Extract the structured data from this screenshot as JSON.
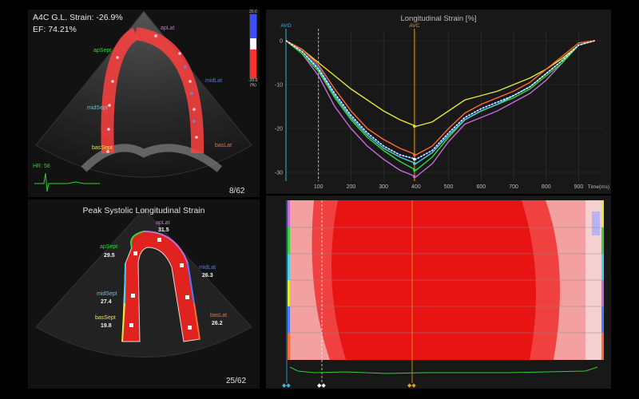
{
  "top_view": {
    "strain_label": "A4C G.L. Strain: -26.9%",
    "ef_label": "EF: 74.21%",
    "frame": "8/62",
    "hr_label": "HR: 58",
    "scale": {
      "max": "20.0",
      "min": "-20.0",
      "unit": "(%)"
    },
    "segments": [
      {
        "name": "apSept",
        "color": "#3ad43a"
      },
      {
        "name": "apLat",
        "color": "#c66bd8"
      },
      {
        "name": "midLat",
        "color": "#4c7cff"
      },
      {
        "name": "midSept",
        "color": "#49d0e6"
      },
      {
        "name": "basSept",
        "color": "#e6e63a"
      },
      {
        "name": "basLat",
        "color": "#ff6a30"
      }
    ]
  },
  "bullseye_view": {
    "title": "Peak Systolic Longitudinal Strain",
    "frame": "25/62",
    "segments": [
      {
        "name": "apLat",
        "value": "31.5",
        "color": "#c66bd8"
      },
      {
        "name": "apSept",
        "value": "29.5",
        "color": "#3ad43a"
      },
      {
        "name": "midLat",
        "value": "26.3",
        "color": "#4c7cff"
      },
      {
        "name": "midSept",
        "value": "27.4",
        "color": "#49d0e6"
      },
      {
        "name": "basSept",
        "value": "19.8",
        "color": "#e6e63a"
      },
      {
        "name": "basLat",
        "value": "26.2",
        "color": "#ff6a30"
      }
    ]
  },
  "chart_data": {
    "type": "line",
    "title": "Longitudinal Strain [%]",
    "xlabel": "Time(ms)",
    "ylabel": "",
    "xlim": [
      0,
      970
    ],
    "ylim": [
      -32,
      2
    ],
    "x_ticks": [
      "100",
      "200",
      "300",
      "400",
      "500",
      "600",
      "700",
      "800",
      "900"
    ],
    "y_ticks": [
      "0",
      "-10",
      "-20",
      "-30"
    ],
    "markers": [
      {
        "label": "AVO",
        "x": 0,
        "color": "#3ab6d8"
      },
      {
        "label": "AVC",
        "x": 395,
        "color": "#e0a020"
      }
    ],
    "cursor_x": 100,
    "x": [
      0,
      50,
      100,
      150,
      200,
      250,
      300,
      350,
      400,
      450,
      500,
      550,
      600,
      650,
      700,
      750,
      800,
      850,
      900,
      950
    ],
    "series": [
      {
        "color": "#e6e63a",
        "values": [
          0,
          -2,
          -5,
          -8,
          -11,
          -13.5,
          -16,
          -18,
          -19.5,
          -18.5,
          -16,
          -13.5,
          -12.5,
          -11.5,
          -10,
          -8.5,
          -6.5,
          -4,
          -1,
          0
        ]
      },
      {
        "color": "#c66bd8",
        "values": [
          0,
          -3,
          -8,
          -15,
          -20,
          -24,
          -27,
          -29.5,
          -31,
          -28,
          -23,
          -19,
          -17.5,
          -16,
          -14,
          -12,
          -9,
          -5,
          -1,
          0
        ]
      },
      {
        "color": "#3ad43a",
        "values": [
          0,
          -3,
          -7,
          -13,
          -18,
          -22,
          -25,
          -27.5,
          -29.5,
          -26.5,
          -22,
          -18,
          -16,
          -14.5,
          -13,
          -11,
          -8,
          -5,
          -1,
          0
        ]
      },
      {
        "color": "#4c7cff",
        "values": [
          0,
          -2.5,
          -6,
          -12,
          -17,
          -21,
          -24,
          -26,
          -27,
          -25,
          -21,
          -17.5,
          -15.5,
          -14,
          -12.5,
          -10.5,
          -7.5,
          -4.5,
          -1,
          0
        ]
      },
      {
        "color": "#49d0e6",
        "values": [
          0,
          -2.5,
          -6.5,
          -12.5,
          -17.5,
          -21.5,
          -24.5,
          -26.5,
          -28,
          -25.5,
          -21.5,
          -18,
          -16,
          -14.5,
          -12.5,
          -10.5,
          -7.5,
          -4.5,
          -1,
          0
        ]
      },
      {
        "color": "#ff6a30",
        "values": [
          0,
          -2,
          -5.5,
          -11,
          -16,
          -20,
          -22.5,
          -24.5,
          -26,
          -24,
          -20,
          -16.5,
          -14.5,
          -13,
          -11.5,
          -9.5,
          -6.5,
          -3.5,
          -0.5,
          0
        ]
      },
      {
        "color": "#ffffff",
        "dashed": true,
        "values": [
          0,
          -2.5,
          -6.5,
          -12,
          -17,
          -21,
          -24,
          -26,
          -27,
          -25,
          -21,
          -17.5,
          -15.5,
          -14,
          -12.5,
          -10.5,
          -7.5,
          -4.5,
          -1,
          0
        ]
      }
    ]
  }
}
